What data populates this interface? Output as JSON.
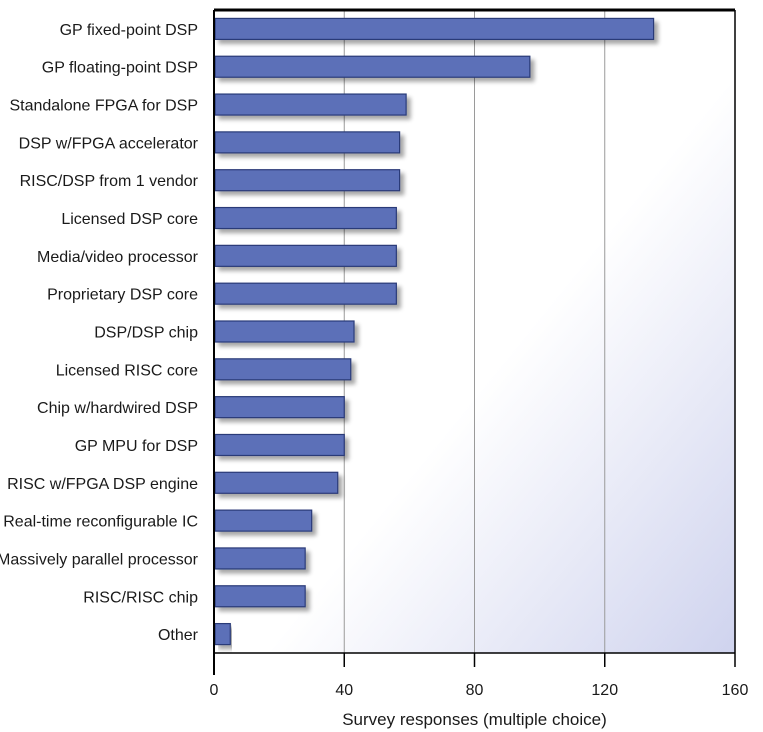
{
  "chart_data": {
    "type": "bar",
    "orientation": "horizontal",
    "categories": [
      "GP fixed-point DSP",
      "GP floating-point DSP",
      "Standalone FPGA for DSP",
      "DSP w/FPGA accelerator",
      "RISC/DSP from 1 vendor",
      "Licensed DSP core",
      "Media/video processor",
      "Proprietary DSP core",
      "DSP/DSP chip",
      "Licensed RISC core",
      "Chip w/hardwired DSP",
      "GP MPU for DSP",
      "RISC w/FPGA DSP engine",
      "Real-time reconfigurable IC",
      "Massively parallel processor",
      "RISC/RISC chip",
      "Other"
    ],
    "values": [
      135,
      97,
      59,
      57,
      57,
      56,
      56,
      56,
      43,
      42,
      40,
      40,
      38,
      30,
      28,
      28,
      5
    ],
    "xlabel": "Survey responses (multiple choice)",
    "ylabel": "",
    "xlim": [
      0,
      160
    ],
    "xticks": [
      "0",
      "40",
      "80",
      "120",
      "160"
    ],
    "grid": true,
    "bar_color": "#5b70b8",
    "bar_edge_color": "#2a3a78",
    "background_gradient": [
      "#ffffff",
      "#cfd3ee"
    ]
  }
}
